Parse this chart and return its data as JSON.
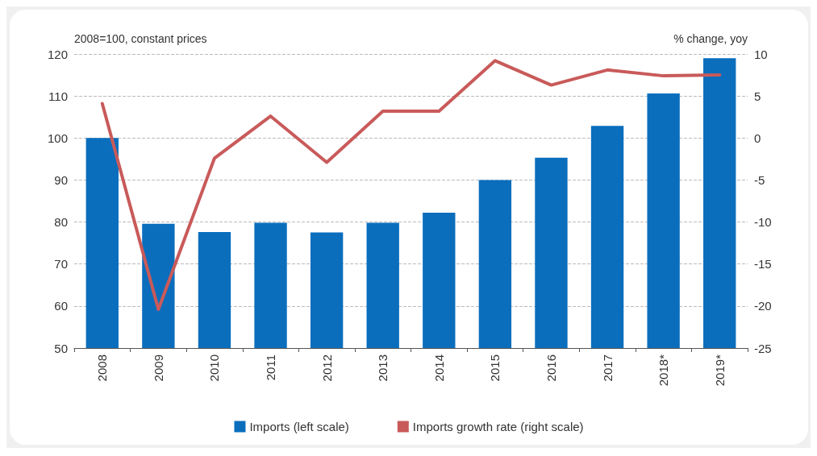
{
  "chart_data": {
    "type": "bar",
    "ylabel": "2008=100, constant prices",
    "y2label": "% change, yoy",
    "categories": [
      "2008",
      "2009",
      "2010",
      "2011",
      "2012",
      "2013",
      "2014",
      "2015",
      "2016",
      "2017",
      "2018*",
      "2019*"
    ],
    "series": [
      {
        "name": "Imports (left scale)",
        "color": "#0a6ebd",
        "values": [
          100,
          79.6,
          77.6,
          79.8,
          77.5,
          79.8,
          82.2,
          90,
          95.3,
          102.9,
          110.6,
          119
        ]
      },
      {
        "name": "Imports growth rate (right scale)",
        "type": "line",
        "axis": "y2",
        "color": "#c95a5a",
        "values": [
          4.1,
          -20.4,
          -2.4,
          2.6,
          -2.9,
          3.2,
          3.2,
          9.2,
          6.3,
          8.1,
          7.4,
          7.5
        ]
      }
    ],
    "ylim": [
      50,
      120
    ],
    "yticks": [
      50,
      60,
      70,
      80,
      90,
      100,
      110,
      120
    ],
    "y2lim": [
      -25,
      10
    ],
    "y2ticks": [
      -25,
      -20,
      -15,
      -10,
      -5,
      0,
      5,
      10
    ],
    "grid": "y",
    "legend": "bottom",
    "marker": "none",
    "line_style": "solid"
  }
}
